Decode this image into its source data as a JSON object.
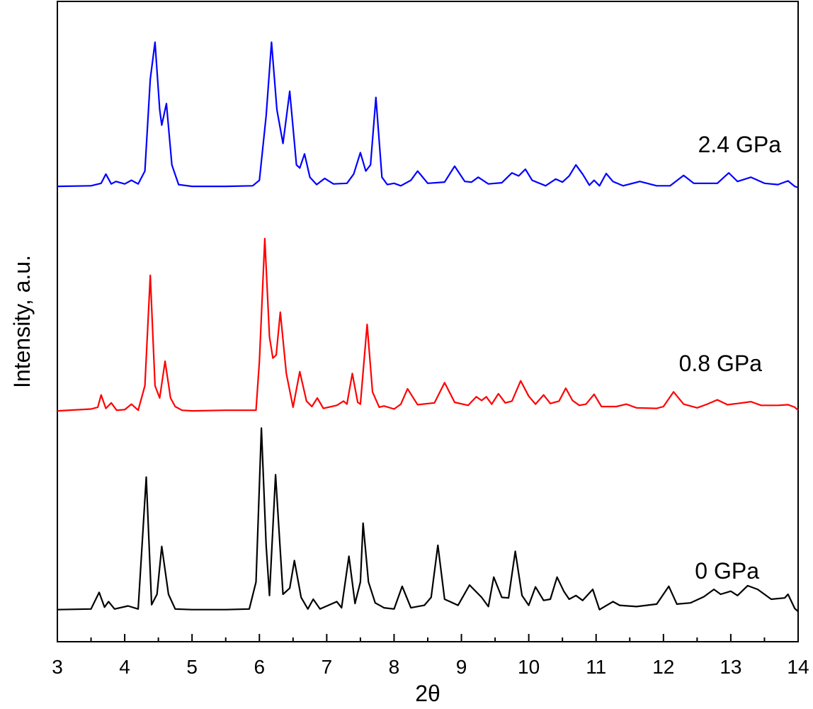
{
  "chart_data": {
    "type": "line",
    "title": "",
    "xlabel": "2θ",
    "ylabel": "Intensity, a.u.",
    "xlim": [
      3,
      14
    ],
    "ylim": [
      0,
      100
    ],
    "x_major_ticks": [
      "3",
      "4",
      "5",
      "6",
      "7",
      "8",
      "9",
      "10",
      "11",
      "12",
      "13",
      "14"
    ],
    "x_minor_ticks": [
      3.5,
      4.5,
      5.5,
      6.5,
      7.5,
      8.5,
      9.5,
      10.5,
      11.5,
      12.5,
      13.5
    ],
    "y_tick_labels": "none",
    "grid": false,
    "legend": "none",
    "series": [
      {
        "name": "0 GPa",
        "color": "#000000",
        "baseline": 3.5,
        "points": [
          [
            3.0,
            3.5
          ],
          [
            3.5,
            3.6
          ],
          [
            3.62,
            6.3
          ],
          [
            3.7,
            3.9
          ],
          [
            3.76,
            4.8
          ],
          [
            3.85,
            3.6
          ],
          [
            4.05,
            4.1
          ],
          [
            4.2,
            3.6
          ],
          [
            4.32,
            25.1
          ],
          [
            4.4,
            4.3
          ],
          [
            4.48,
            6.0
          ],
          [
            4.55,
            13.8
          ],
          [
            4.65,
            6.0
          ],
          [
            4.75,
            3.6
          ],
          [
            5.0,
            3.5
          ],
          [
            5.5,
            3.5
          ],
          [
            5.85,
            3.6
          ],
          [
            5.95,
            8.0
          ],
          [
            6.03,
            33.1
          ],
          [
            6.1,
            14.0
          ],
          [
            6.15,
            5.8
          ],
          [
            6.24,
            25.5
          ],
          [
            6.35,
            6.0
          ],
          [
            6.45,
            7.0
          ],
          [
            6.52,
            11.5
          ],
          [
            6.62,
            5.5
          ],
          [
            6.72,
            3.6
          ],
          [
            6.8,
            5.2
          ],
          [
            6.9,
            3.6
          ],
          [
            7.15,
            4.8
          ],
          [
            7.22,
            3.8
          ],
          [
            7.33,
            12.2
          ],
          [
            7.42,
            4.5
          ],
          [
            7.5,
            8.0
          ],
          [
            7.54,
            17.6
          ],
          [
            7.62,
            8.0
          ],
          [
            7.72,
            4.6
          ],
          [
            7.85,
            3.8
          ],
          [
            8.0,
            3.6
          ],
          [
            8.12,
            7.3
          ],
          [
            8.25,
            3.8
          ],
          [
            8.45,
            4.2
          ],
          [
            8.55,
            5.5
          ],
          [
            8.65,
            14.0
          ],
          [
            8.75,
            5.2
          ],
          [
            8.95,
            4.2
          ],
          [
            9.12,
            7.5
          ],
          [
            9.3,
            5.5
          ],
          [
            9.4,
            4.0
          ],
          [
            9.48,
            8.8
          ],
          [
            9.6,
            5.5
          ],
          [
            9.7,
            5.4
          ],
          [
            9.8,
            13.0
          ],
          [
            9.9,
            5.8
          ],
          [
            10.0,
            4.2
          ],
          [
            10.1,
            7.2
          ],
          [
            10.22,
            5.0
          ],
          [
            10.32,
            5.2
          ],
          [
            10.42,
            8.8
          ],
          [
            10.52,
            6.5
          ],
          [
            10.6,
            5.2
          ],
          [
            10.7,
            5.8
          ],
          [
            10.8,
            5.0
          ],
          [
            10.95,
            6.8
          ],
          [
            11.05,
            3.5
          ],
          [
            11.25,
            4.8
          ],
          [
            11.35,
            4.2
          ],
          [
            11.6,
            4.0
          ],
          [
            11.9,
            4.4
          ],
          [
            12.08,
            7.3
          ],
          [
            12.2,
            4.4
          ],
          [
            12.4,
            4.6
          ],
          [
            12.6,
            5.6
          ],
          [
            12.75,
            6.8
          ],
          [
            12.85,
            6.0
          ],
          [
            13.0,
            6.5
          ],
          [
            13.1,
            5.8
          ],
          [
            13.25,
            7.4
          ],
          [
            13.4,
            6.8
          ],
          [
            13.6,
            5.2
          ],
          [
            13.8,
            5.4
          ],
          [
            13.85,
            6.0
          ],
          [
            13.95,
            3.7
          ],
          [
            14.0,
            3.2
          ]
        ]
      },
      {
        "name": "0.8 GPa",
        "color": "#ff0000",
        "baseline": 36.0,
        "points": [
          [
            3.0,
            35.9
          ],
          [
            3.5,
            36.2
          ],
          [
            3.6,
            36.5
          ],
          [
            3.65,
            38.5
          ],
          [
            3.72,
            36.3
          ],
          [
            3.8,
            37.2
          ],
          [
            3.88,
            36.0
          ],
          [
            4.0,
            36.1
          ],
          [
            4.1,
            37.0
          ],
          [
            4.2,
            36.0
          ],
          [
            4.3,
            40.0
          ],
          [
            4.38,
            58.0
          ],
          [
            4.45,
            40.0
          ],
          [
            4.52,
            38.0
          ],
          [
            4.6,
            44.0
          ],
          [
            4.68,
            38.0
          ],
          [
            4.75,
            36.6
          ],
          [
            4.85,
            36.0
          ],
          [
            5.0,
            35.9
          ],
          [
            5.5,
            36.0
          ],
          [
            5.95,
            36.0
          ],
          [
            6.0,
            44.0
          ],
          [
            6.08,
            64.0
          ],
          [
            6.15,
            48.0
          ],
          [
            6.2,
            44.5
          ],
          [
            6.25,
            45.0
          ],
          [
            6.31,
            52.0
          ],
          [
            6.4,
            42.0
          ],
          [
            6.5,
            36.5
          ],
          [
            6.6,
            42.3
          ],
          [
            6.7,
            37.5
          ],
          [
            6.78,
            36.6
          ],
          [
            6.86,
            38.0
          ],
          [
            6.95,
            36.3
          ],
          [
            7.15,
            36.8
          ],
          [
            7.25,
            37.5
          ],
          [
            7.3,
            37.0
          ],
          [
            7.38,
            42.0
          ],
          [
            7.46,
            37.3
          ],
          [
            7.5,
            37.0
          ],
          [
            7.6,
            50.0
          ],
          [
            7.68,
            39.0
          ],
          [
            7.78,
            36.5
          ],
          [
            7.85,
            36.7
          ],
          [
            8.0,
            36.2
          ],
          [
            8.1,
            37.0
          ],
          [
            8.2,
            39.5
          ],
          [
            8.35,
            36.9
          ],
          [
            8.6,
            37.2
          ],
          [
            8.75,
            40.5
          ],
          [
            8.9,
            37.3
          ],
          [
            9.1,
            36.8
          ],
          [
            9.22,
            38.2
          ],
          [
            9.3,
            37.6
          ],
          [
            9.37,
            38.2
          ],
          [
            9.45,
            37.0
          ],
          [
            9.55,
            38.7
          ],
          [
            9.65,
            37.2
          ],
          [
            9.75,
            37.5
          ],
          [
            9.88,
            40.8
          ],
          [
            10.0,
            38.3
          ],
          [
            10.1,
            37.0
          ],
          [
            10.22,
            38.5
          ],
          [
            10.32,
            37.1
          ],
          [
            10.45,
            37.5
          ],
          [
            10.55,
            39.6
          ],
          [
            10.65,
            37.6
          ],
          [
            10.75,
            36.8
          ],
          [
            10.85,
            37.0
          ],
          [
            10.97,
            38.6
          ],
          [
            11.08,
            36.6
          ],
          [
            11.3,
            36.6
          ],
          [
            11.45,
            37.0
          ],
          [
            11.6,
            36.4
          ],
          [
            11.9,
            36.3
          ],
          [
            12.0,
            36.6
          ],
          [
            12.15,
            39.0
          ],
          [
            12.3,
            37.0
          ],
          [
            12.5,
            36.4
          ],
          [
            12.65,
            37.0
          ],
          [
            12.8,
            37.7
          ],
          [
            12.95,
            36.9
          ],
          [
            13.1,
            37.1
          ],
          [
            13.3,
            37.4
          ],
          [
            13.45,
            36.8
          ],
          [
            13.7,
            36.8
          ],
          [
            13.85,
            36.9
          ],
          [
            13.95,
            36.5
          ],
          [
            14.0,
            36.0
          ]
        ]
      },
      {
        "name": "2.4 GPa",
        "color": "#0000ff",
        "baseline": 72.4,
        "points": [
          [
            3.0,
            72.5
          ],
          [
            3.5,
            72.6
          ],
          [
            3.65,
            73.0
          ],
          [
            3.72,
            74.5
          ],
          [
            3.8,
            72.9
          ],
          [
            3.87,
            73.3
          ],
          [
            4.0,
            72.9
          ],
          [
            4.1,
            73.5
          ],
          [
            4.2,
            72.9
          ],
          [
            4.3,
            75.0
          ],
          [
            4.38,
            90.0
          ],
          [
            4.45,
            96.0
          ],
          [
            4.52,
            85.0
          ],
          [
            4.55,
            82.5
          ],
          [
            4.62,
            86.0
          ],
          [
            4.7,
            76.0
          ],
          [
            4.8,
            72.8
          ],
          [
            5.0,
            72.5
          ],
          [
            5.5,
            72.5
          ],
          [
            5.9,
            72.6
          ],
          [
            6.0,
            73.5
          ],
          [
            6.1,
            84.0
          ],
          [
            6.18,
            96.0
          ],
          [
            6.26,
            85.0
          ],
          [
            6.35,
            79.5
          ],
          [
            6.45,
            88.0
          ],
          [
            6.55,
            76.0
          ],
          [
            6.6,
            75.5
          ],
          [
            6.67,
            77.8
          ],
          [
            6.75,
            74.0
          ],
          [
            6.85,
            72.8
          ],
          [
            6.97,
            73.8
          ],
          [
            7.1,
            72.9
          ],
          [
            7.3,
            73.0
          ],
          [
            7.4,
            74.5
          ],
          [
            7.5,
            78.0
          ],
          [
            7.58,
            75.0
          ],
          [
            7.65,
            76.0
          ],
          [
            7.73,
            87.0
          ],
          [
            7.82,
            74.0
          ],
          [
            7.9,
            72.8
          ],
          [
            8.0,
            73.0
          ],
          [
            8.1,
            72.6
          ],
          [
            8.25,
            73.5
          ],
          [
            8.35,
            75.0
          ],
          [
            8.5,
            73.0
          ],
          [
            8.75,
            73.2
          ],
          [
            8.9,
            75.8
          ],
          [
            9.05,
            73.3
          ],
          [
            9.15,
            73.2
          ],
          [
            9.25,
            74.0
          ],
          [
            9.4,
            72.9
          ],
          [
            9.6,
            73.1
          ],
          [
            9.75,
            74.7
          ],
          [
            9.85,
            74.2
          ],
          [
            9.95,
            75.3
          ],
          [
            10.05,
            73.5
          ],
          [
            10.25,
            72.6
          ],
          [
            10.4,
            73.7
          ],
          [
            10.5,
            73.2
          ],
          [
            10.6,
            74.2
          ],
          [
            10.7,
            76.0
          ],
          [
            10.8,
            74.5
          ],
          [
            10.9,
            72.7
          ],
          [
            10.97,
            73.5
          ],
          [
            11.05,
            72.6
          ],
          [
            11.15,
            74.6
          ],
          [
            11.25,
            73.3
          ],
          [
            11.4,
            72.6
          ],
          [
            11.65,
            73.3
          ],
          [
            11.9,
            72.6
          ],
          [
            12.1,
            72.6
          ],
          [
            12.3,
            74.3
          ],
          [
            12.45,
            73.0
          ],
          [
            12.8,
            73.0
          ],
          [
            12.97,
            74.7
          ],
          [
            13.1,
            73.3
          ],
          [
            13.3,
            74.0
          ],
          [
            13.5,
            73.0
          ],
          [
            13.7,
            72.8
          ],
          [
            13.85,
            73.4
          ],
          [
            13.95,
            72.5
          ],
          [
            14.0,
            72.3
          ]
        ]
      }
    ]
  }
}
